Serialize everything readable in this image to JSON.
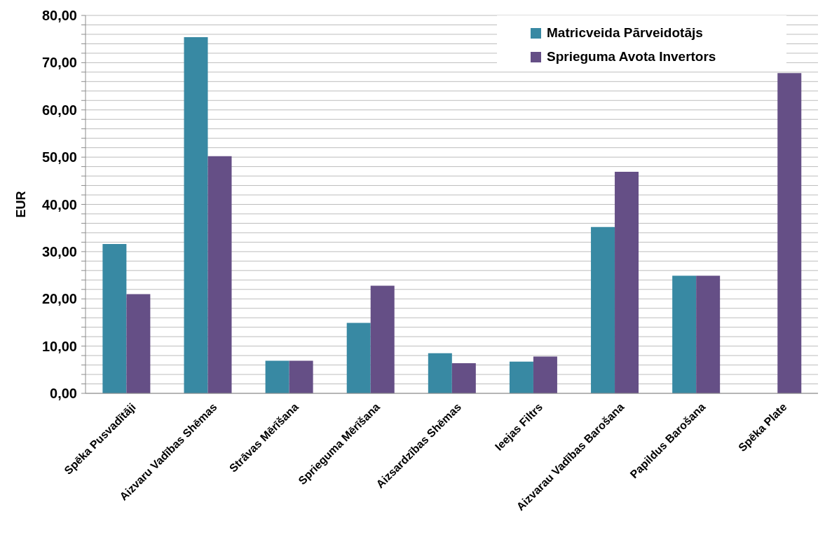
{
  "chart_data": {
    "type": "bar",
    "ylabel": "EUR",
    "categories": [
      "Spēka Pusvadītāji",
      "Aizvaru Vadības Shēmas",
      "Strāvas Mērīšana",
      "Sprieguma Mērīšana",
      "Aizsardzības Shēmas",
      "Ieejas Filtrs",
      "Aizvarau Vadības Barošana",
      "Papildus Barošana",
      "Spēka Plate"
    ],
    "series": [
      {
        "name": "Matricveida Pārveidotājs",
        "color": "#3889a3",
        "values": [
          31.6,
          75.4,
          6.9,
          14.9,
          8.5,
          6.7,
          35.2,
          24.9,
          null
        ]
      },
      {
        "name": "Sprieguma Avota Invertors",
        "color": "#654f86",
        "values": [
          21.0,
          50.2,
          6.9,
          22.8,
          6.4,
          7.8,
          46.9,
          24.9,
          67.8
        ]
      }
    ],
    "ylim": [
      0,
      80
    ],
    "yticks": [
      {
        "value": 0,
        "label": "0,00"
      },
      {
        "value": 2,
        "label": null
      },
      {
        "value": 4,
        "label": null
      },
      {
        "value": 6,
        "label": null
      },
      {
        "value": 8,
        "label": null
      },
      {
        "value": 10,
        "label": "10,00"
      },
      {
        "value": 12,
        "label": null
      },
      {
        "value": 14,
        "label": null
      },
      {
        "value": 16,
        "label": null
      },
      {
        "value": 18,
        "label": null
      },
      {
        "value": 20,
        "label": "20,00"
      },
      {
        "value": 22,
        "label": null
      },
      {
        "value": 24,
        "label": null
      },
      {
        "value": 26,
        "label": null
      },
      {
        "value": 28,
        "label": null
      },
      {
        "value": 30,
        "label": "30,00"
      },
      {
        "value": 32,
        "label": null
      },
      {
        "value": 34,
        "label": null
      },
      {
        "value": 36,
        "label": null
      },
      {
        "value": 38,
        "label": null
      },
      {
        "value": 40,
        "label": "40,00"
      },
      {
        "value": 42,
        "label": null
      },
      {
        "value": 44,
        "label": null
      },
      {
        "value": 46,
        "label": null
      },
      {
        "value": 48,
        "label": null
      },
      {
        "value": 50,
        "label": "50,00"
      },
      {
        "value": 52,
        "label": null
      },
      {
        "value": 54,
        "label": null
      },
      {
        "value": 56,
        "label": null
      },
      {
        "value": 58,
        "label": null
      },
      {
        "value": 60,
        "label": "60,00"
      },
      {
        "value": 62,
        "label": null
      },
      {
        "value": 64,
        "label": null
      },
      {
        "value": 66,
        "label": null
      },
      {
        "value": 68,
        "label": null
      },
      {
        "value": 70,
        "label": "70,00"
      },
      {
        "value": 72,
        "label": null
      },
      {
        "value": 74,
        "label": null
      },
      {
        "value": 76,
        "label": null
      },
      {
        "value": 78,
        "label": null
      },
      {
        "value": 80,
        "label": "80,00"
      }
    ],
    "grid": true,
    "legend": "top right"
  }
}
